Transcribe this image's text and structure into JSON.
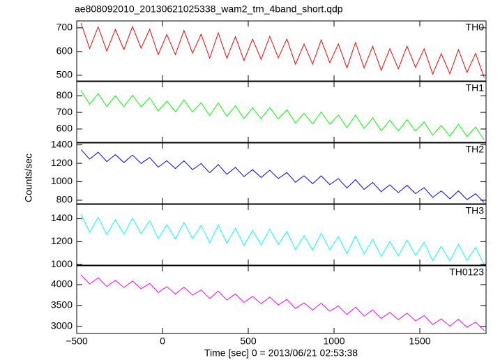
{
  "chart_data": {
    "type": "line",
    "title": "ae808092010_20130621025338_wam2_trn_4band_short.qdp",
    "x_label": "Time [sec] 0 = 2013/06/21 02:53:38",
    "y_label": "Counts/sec",
    "xlim": [
      -500,
      1886
    ],
    "xticks": [
      {
        "value": -500,
        "label": "−500"
      },
      0,
      500,
      1000,
      1500
    ],
    "x": [
      -475,
      -425,
      -375,
      -325,
      -275,
      -225,
      -175,
      -125,
      -75,
      -25,
      25,
      75,
      125,
      175,
      225,
      275,
      325,
      375,
      425,
      475,
      525,
      575,
      625,
      675,
      725,
      775,
      825,
      875,
      925,
      975,
      1025,
      1075,
      1125,
      1175,
      1225,
      1275,
      1325,
      1375,
      1425,
      1475,
      1525,
      1575,
      1625,
      1675,
      1725,
      1775,
      1825,
      1875
    ],
    "series": [
      {
        "name": "TH0",
        "color": "#ff0000",
        "ylim": [
          476,
          729
        ],
        "yticks": [
          500,
          600,
          700
        ],
        "values": [
          720,
          613,
          704,
          602,
          693,
          608,
          705,
          614,
          694,
          587,
          672,
          587,
          689,
          593,
          673,
          572,
          679,
          572,
          663,
          562,
          652,
          567,
          664,
          573,
          653,
          546,
          632,
          547,
          649,
          553,
          632,
          531,
          638,
          531,
          622,
          521,
          612,
          527,
          623,
          533,
          612,
          505,
          591,
          506,
          608,
          512,
          592,
          490
        ]
      },
      {
        "name": "TH1",
        "color": "#00ff00",
        "ylim": [
          520,
          885
        ],
        "yticks": [
          600,
          700,
          800
        ],
        "values": [
          830,
          749,
          813,
          736,
          800,
          735,
          803,
          734,
          789,
          709,
          768,
          704,
          775,
          703,
          758,
          681,
          757,
          676,
          740,
          663,
          727,
          662,
          729,
          661,
          716,
          636,
          695,
          631,
          702,
          629,
          685,
          608,
          684,
          603,
          667,
          590,
          653,
          589,
          656,
          588,
          643,
          563,
          622,
          557,
          629,
          556,
          612,
          535
        ]
      },
      {
        "name": "TH2",
        "color": "#0000ff",
        "ylim": [
          762,
          1420
        ],
        "yticks": [
          800,
          1000,
          1200,
          1400
        ],
        "values": [
          1350,
          1245,
          1320,
          1219,
          1294,
          1209,
          1289,
          1199,
          1263,
          1158,
          1228,
          1143,
          1228,
          1132,
          1197,
          1097,
          1187,
          1081,
          1156,
          1056,
          1131,
          1046,
          1125,
          1035,
          1100,
          995,
          1065,
          979,
          1064,
          969,
          1034,
          934,
          1023,
          918,
          993,
          893,
          967,
          882,
          962,
          872,
          937,
          831,
          901,
          816,
          901,
          806,
          870,
          775
        ]
      },
      {
        "name": "TH3",
        "color": "#00ffff",
        "ylim": [
          995,
          1525
        ],
        "yticks": [
          1000,
          1200,
          1400
        ],
        "values": [
          1440,
          1282,
          1412,
          1262,
          1392,
          1266,
          1404,
          1270,
          1384,
          1226,
          1348,
          1222,
          1368,
          1227,
          1341,
          1191,
          1345,
          1187,
          1317,
          1167,
          1297,
          1171,
          1309,
          1175,
          1289,
          1131,
          1253,
          1127,
          1273,
          1131,
          1245,
          1095,
          1249,
          1091,
          1221,
          1071,
          1202,
          1076,
          1214,
          1080,
          1194,
          1036,
          1158,
          1032,
          1178,
          1036,
          1150,
          1000
        ]
      },
      {
        "name": "TH0123",
        "color": "#ff00ff",
        "ylim": [
          2830,
          4450
        ],
        "yticks": [
          3000,
          3500,
          4000
        ],
        "values": [
          4230,
          4016,
          4162,
          3958,
          4104,
          3930,
          4086,
          3902,
          4028,
          3814,
          3950,
          3776,
          3942,
          3748,
          3873,
          3669,
          3845,
          3631,
          3777,
          3573,
          3719,
          3545,
          3701,
          3517,
          3643,
          3429,
          3565,
          3391,
          3557,
          3363,
          3489,
          3285,
          3461,
          3247,
          3393,
          3189,
          3335,
          3161,
          3317,
          3132,
          3258,
          3044,
          3180,
          3006,
          3172,
          2978,
          3104,
          2900
        ]
      }
    ]
  }
}
